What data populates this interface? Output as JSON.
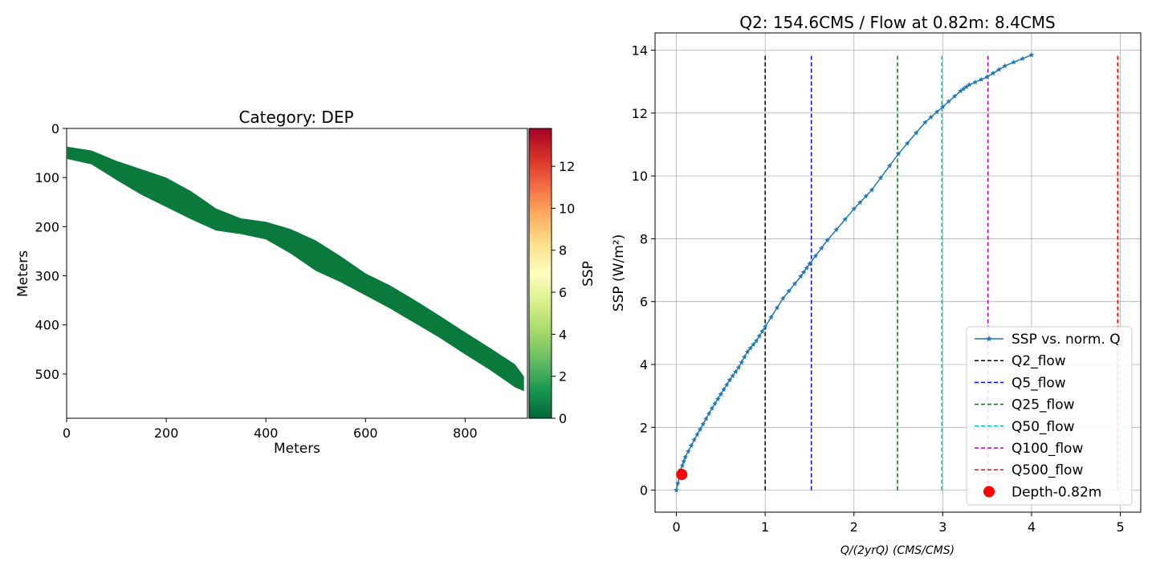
{
  "chart_data": [
    {
      "type": "heatmap",
      "title": "Category: DEP",
      "xlabel": "Meters",
      "ylabel": "Meters",
      "xlim": [
        0,
        925
      ],
      "ylim": [
        590,
        0
      ],
      "x_ticks": [
        "0",
        "200",
        "400",
        "600",
        "800"
      ],
      "y_ticks": [
        "0",
        "100",
        "200",
        "300",
        "400",
        "500"
      ],
      "colorbar": {
        "label": "SSP",
        "range": [
          0,
          13.8
        ],
        "ticks": [
          "0",
          "2",
          "4",
          "6",
          "8",
          "10",
          "12"
        ],
        "colormap": "RdYlGn_r"
      },
      "region_color": "#0a7a3c",
      "region_upper_edge": [
        [
          0,
          37
        ],
        [
          50,
          45
        ],
        [
          100,
          66
        ],
        [
          150,
          83
        ],
        [
          200,
          100
        ],
        [
          250,
          128
        ],
        [
          300,
          163
        ],
        [
          350,
          183
        ],
        [
          400,
          190
        ],
        [
          450,
          205
        ],
        [
          500,
          228
        ],
        [
          550,
          260
        ],
        [
          600,
          295
        ],
        [
          650,
          320
        ],
        [
          700,
          350
        ],
        [
          750,
          382
        ],
        [
          800,
          415
        ],
        [
          850,
          447
        ],
        [
          900,
          480
        ],
        [
          918,
          505
        ]
      ],
      "region_lower_edge": [
        [
          918,
          535
        ],
        [
          900,
          527
        ],
        [
          850,
          492
        ],
        [
          800,
          460
        ],
        [
          750,
          427
        ],
        [
          700,
          397
        ],
        [
          650,
          367
        ],
        [
          600,
          340
        ],
        [
          550,
          313
        ],
        [
          500,
          290
        ],
        [
          450,
          255
        ],
        [
          400,
          226
        ],
        [
          350,
          215
        ],
        [
          300,
          208
        ],
        [
          250,
          185
        ],
        [
          200,
          160
        ],
        [
          150,
          135
        ],
        [
          100,
          105
        ],
        [
          50,
          73
        ],
        [
          0,
          62
        ]
      ]
    },
    {
      "type": "line",
      "title": "Q2: 154.6CMS / Flow at 0.82m: 8.4CMS",
      "xlabel": "Q/(2yrQ) (CMS/CMS)",
      "ylabel": "SSP (W/m²)",
      "xlim": [
        -0.24,
        5.23
      ],
      "ylim": [
        -0.7,
        14.55
      ],
      "grid": true,
      "legend_position": "lower-right",
      "x_ticks": [
        "0",
        "1",
        "2",
        "3",
        "4",
        "5"
      ],
      "y_ticks": [
        "0",
        "2",
        "4",
        "6",
        "8",
        "10",
        "12",
        "14"
      ],
      "series": [
        {
          "name": "SSP vs. norm. Q",
          "color": "#1f77b4",
          "marker": "star",
          "x": [
            0.0,
            0.05,
            0.1,
            0.2,
            0.3,
            0.4,
            0.5,
            0.6,
            0.7,
            0.8,
            0.9,
            1.0,
            1.2,
            1.4,
            1.5,
            1.7,
            2.0,
            2.2,
            2.5,
            2.8,
            3.0,
            3.2,
            3.3,
            3.5,
            3.7,
            4.0
          ],
          "y": [
            0.0,
            0.65,
            1.05,
            1.6,
            2.1,
            2.6,
            3.05,
            3.5,
            3.9,
            4.4,
            4.75,
            5.2,
            6.1,
            6.8,
            7.2,
            7.95,
            8.95,
            9.55,
            10.7,
            11.7,
            12.2,
            12.7,
            12.9,
            13.15,
            13.5,
            13.85
          ]
        }
      ],
      "vlines": [
        {
          "name": "Q2_flow",
          "x": 1.0,
          "color": "#000000"
        },
        {
          "name": "Q5_flow",
          "x": 1.52,
          "color": "#0000ff"
        },
        {
          "name": "Q25_flow",
          "x": 2.49,
          "color": "#008000"
        },
        {
          "name": "Q50_flow",
          "x": 2.99,
          "color": "#00bfbf"
        },
        {
          "name": "Q100_flow",
          "x": 3.51,
          "color": "#bf00bf"
        },
        {
          "name": "Q500_flow",
          "x": 4.97,
          "color": "#ff0000"
        }
      ],
      "vline_ymax": 13.85,
      "point": {
        "name": "Depth-0.82m",
        "x": 0.06,
        "y": 0.5,
        "color": "#ff0000"
      }
    }
  ]
}
